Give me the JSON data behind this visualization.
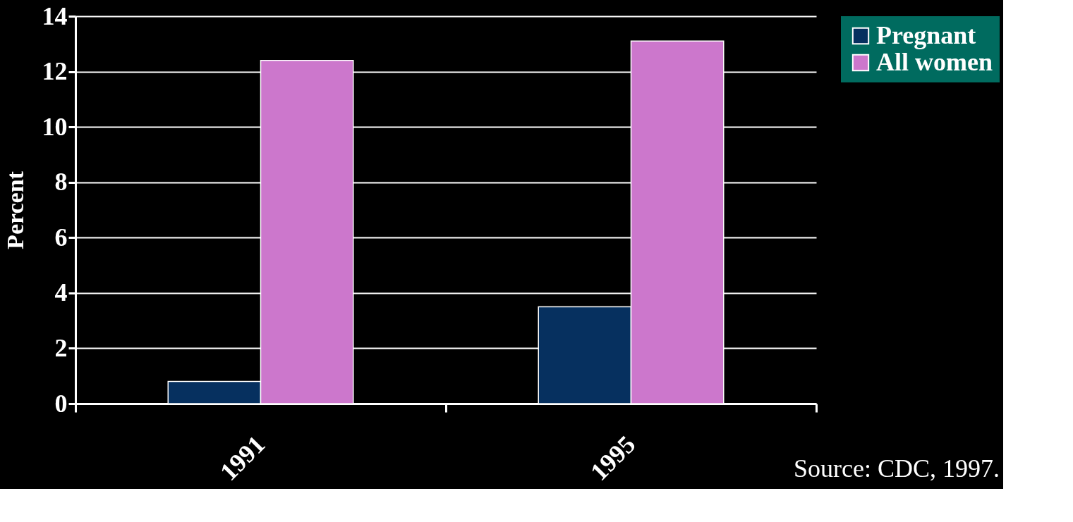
{
  "chart_data": {
    "type": "bar",
    "ylabel": "Percent",
    "categories": [
      "1991",
      "1995"
    ],
    "series": [
      {
        "name": "Pregnant",
        "color": "#06305f",
        "values": [
          0.8,
          3.5
        ]
      },
      {
        "name": "All women",
        "color": "#cc77cc",
        "values": [
          12.4,
          13.1
        ]
      }
    ],
    "ylim": [
      0,
      14
    ],
    "yticks": [
      0,
      2,
      4,
      6,
      8,
      10,
      12,
      14
    ],
    "grid": "y",
    "legend": "right",
    "annotations": [
      "Source: CDC, 1997."
    ]
  }
}
